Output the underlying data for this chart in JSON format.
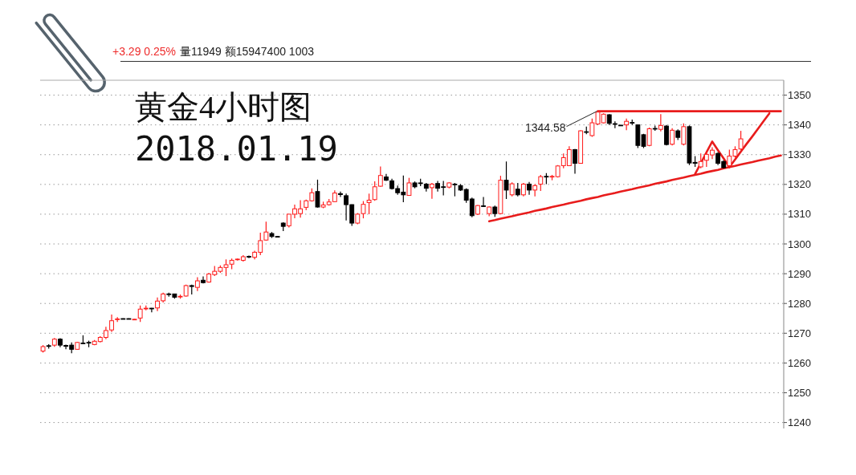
{
  "chart_data": {
    "type": "candlestick",
    "title": "黄金4小时图",
    "subtitle": "2018.01.19",
    "annotations": [
      "1344.58",
      "+3.29 0.25%",
      "量11949 额15947400 1003"
    ],
    "categories": [
      null,
      null,
      null,
      null,
      null,
      null,
      null,
      null,
      null,
      null,
      null,
      null,
      null,
      null,
      null,
      null,
      null,
      null,
      null,
      null,
      null,
      null,
      null,
      null,
      null,
      null,
      null,
      null,
      null,
      null,
      null,
      null,
      null,
      null,
      null,
      null,
      null,
      null,
      null,
      null,
      null,
      null,
      null,
      null,
      null,
      null,
      null,
      null,
      null,
      null,
      null,
      null,
      null,
      null,
      null,
      null,
      null,
      null,
      null,
      null,
      null,
      null,
      null,
      null,
      null,
      null,
      null,
      null,
      null,
      null,
      null,
      null,
      null,
      null,
      null,
      null,
      null,
      null,
      null,
      null,
      null,
      null,
      null,
      null,
      null,
      null,
      null,
      null,
      null,
      null,
      null,
      null,
      null,
      null,
      null,
      null,
      null,
      null,
      null,
      null,
      null,
      null,
      null,
      null,
      null,
      null,
      null,
      null,
      null,
      null,
      null,
      null,
      null,
      null,
      null,
      null,
      null,
      null,
      null,
      null,
      null,
      null,
      null,
      null,
      null,
      null,
      null,
      null,
      null,
      null
    ],
    "ohlc": [
      [
        1264.0,
        1266.0,
        1263.5,
        1265.5
      ],
      [
        1265.8,
        1266.3,
        1264.8,
        1265.6
      ],
      [
        1266.0,
        1268.4,
        1265.4,
        1268.0
      ],
      [
        1268.0,
        1268.3,
        1265.3,
        1266.0
      ],
      [
        1265.9,
        1266.2,
        1264.6,
        1265.6
      ],
      [
        1266.0,
        1266.9,
        1263.3,
        1264.6
      ],
      [
        1264.6,
        1267.1,
        1264.5,
        1266.9
      ],
      [
        1266.7,
        1269.3,
        1266.3,
        1266.5
      ],
      [
        1266.9,
        1267.5,
        1265.3,
        1266.7
      ],
      [
        1266.2,
        1267.7,
        1266.0,
        1267.3
      ],
      [
        1267.2,
        1269.0,
        1266.9,
        1268.6
      ],
      [
        1268.6,
        1272.2,
        1268.0,
        1270.9
      ],
      [
        1271.1,
        1276.3,
        1270.4,
        1274.2
      ],
      [
        1274.6,
        1275.4,
        1273.8,
        1274.8
      ],
      [
        1274.9,
        1275.0,
        1274.7,
        1274.8
      ],
      [
        1274.9,
        1275.0,
        1274.7,
        1274.8
      ],
      [
        1274.6,
        1274.8,
        1274.5,
        1274.7
      ],
      [
        1275.1,
        1279.3,
        1273.8,
        1278.1
      ],
      [
        1278.2,
        1279.3,
        1277.7,
        1278.4
      ],
      [
        1278.4,
        1278.5,
        1277.0,
        1278.2
      ],
      [
        1278.5,
        1282.0,
        1277.4,
        1280.8
      ],
      [
        1280.9,
        1283.6,
        1280.3,
        1283.2
      ],
      [
        1283.2,
        1283.6,
        1282.3,
        1283.1
      ],
      [
        1283.2,
        1283.3,
        1281.6,
        1282.1
      ],
      [
        1282.2,
        1283.0,
        1281.6,
        1282.4
      ],
      [
        1282.5,
        1286.3,
        1282.3,
        1286.0
      ],
      [
        1286.0,
        1286.3,
        1283.0,
        1285.7
      ],
      [
        1285.4,
        1288.8,
        1284.2,
        1287.6
      ],
      [
        1287.8,
        1289.1,
        1286.7,
        1287.0
      ],
      [
        1287.2,
        1290.2,
        1287.0,
        1289.9
      ],
      [
        1289.7,
        1292.6,
        1289.2,
        1290.8
      ],
      [
        1290.8,
        1292.8,
        1290.3,
        1292.1
      ],
      [
        1292.1,
        1294.8,
        1289.2,
        1293.0
      ],
      [
        1293.2,
        1295.1,
        1291.5,
        1294.5
      ],
      [
        1294.7,
        1295.1,
        1294.4,
        1294.9
      ],
      [
        1294.5,
        1296.2,
        1294.1,
        1295.7
      ],
      [
        1295.8,
        1296.1,
        1295.2,
        1295.6
      ],
      [
        1295.5,
        1297.7,
        1294.8,
        1297.2
      ],
      [
        1297.2,
        1303.8,
        1296.2,
        1301.1
      ],
      [
        1301.3,
        1307.5,
        1301.1,
        1304.0
      ],
      [
        1303.5,
        1304.0,
        1302.0,
        1302.5
      ],
      [
        1302.5,
        1302.6,
        1302.2,
        1302.3
      ],
      [
        1307.0,
        1307.3,
        1304.3,
        1305.9
      ],
      [
        1306.1,
        1310.0,
        1305.5,
        1310.0
      ],
      [
        1310.0,
        1313.2,
        1308.6,
        1311.8
      ],
      [
        1310.2,
        1314.7,
        1308.8,
        1311.8
      ],
      [
        1312.3,
        1314.9,
        1311.3,
        1314.5
      ],
      [
        1314.5,
        1318.7,
        1314.2,
        1317.2
      ],
      [
        1317.6,
        1321.6,
        1312.2,
        1312.4
      ],
      [
        1312.4,
        1314.2,
        1312.0,
        1313.1
      ],
      [
        1313.2,
        1315.1,
        1312.9,
        1314.1
      ],
      [
        1314.2,
        1318.0,
        1314.0,
        1317.1
      ],
      [
        1316.9,
        1317.6,
        1315.8,
        1316.6
      ],
      [
        1316.2,
        1316.9,
        1307.9,
        1313.2
      ],
      [
        1313.2,
        1313.3,
        1306.1,
        1307.0
      ],
      [
        1307.0,
        1310.4,
        1306.6,
        1310.0
      ],
      [
        1310.2,
        1314.4,
        1308.6,
        1313.3
      ],
      [
        1313.9,
        1316.9,
        1310.0,
        1314.7
      ],
      [
        1314.9,
        1321.0,
        1314.5,
        1319.2
      ],
      [
        1319.4,
        1326.0,
        1319.2,
        1323.0
      ],
      [
        1322.5,
        1323.5,
        1321.2,
        1321.4
      ],
      [
        1321.2,
        1321.9,
        1318.3,
        1318.6
      ],
      [
        1318.6,
        1319.6,
        1316.5,
        1317.2
      ],
      [
        1317.4,
        1323.0,
        1314.0,
        1316.5
      ],
      [
        1316.3,
        1322.2,
        1316.3,
        1320.5
      ],
      [
        1320.5,
        1321.0,
        1318.7,
        1319.2
      ],
      [
        1320.5,
        1321.9,
        1319.4,
        1320.3
      ],
      [
        1320.1,
        1320.5,
        1317.6,
        1318.7
      ],
      [
        1318.9,
        1320.5,
        1315.2,
        1320.1
      ],
      [
        1320.3,
        1321.2,
        1317.6,
        1318.7
      ],
      [
        1319.2,
        1321.2,
        1316.3,
        1319.0
      ],
      [
        1319.1,
        1320.7,
        1318.7,
        1320.5
      ],
      [
        1320.1,
        1320.5,
        1316.0,
        1319.9
      ],
      [
        1319.6,
        1320.1,
        1317.8,
        1318.1
      ],
      [
        1318.3,
        1318.7,
        1313.8,
        1314.7
      ],
      [
        1315.1,
        1315.6,
        1309.0,
        1309.5
      ],
      [
        1310.0,
        1313.1,
        1309.7,
        1312.9
      ],
      [
        1312.8,
        1315.8,
        1312.4,
        1312.6
      ],
      [
        1310.2,
        1312.6,
        1309.3,
        1312.4
      ],
      [
        1312.4,
        1312.9,
        1309.1,
        1310.2
      ],
      [
        1310.2,
        1322.9,
        1310.0,
        1321.4
      ],
      [
        1321.4,
        1327.7,
        1315.1,
        1318.1
      ],
      [
        1316.5,
        1320.7,
        1316.0,
        1320.2
      ],
      [
        1318.4,
        1320.5,
        1316.0,
        1316.5
      ],
      [
        1316.5,
        1320.5,
        1316.0,
        1320.1
      ],
      [
        1320.1,
        1320.8,
        1316.5,
        1318.1
      ],
      [
        1318.1,
        1320.1,
        1316.0,
        1319.6
      ],
      [
        1320.1,
        1323.2,
        1317.8,
        1322.6
      ],
      [
        1322.7,
        1323.8,
        1320.1,
        1322.5
      ],
      [
        1322.5,
        1323.2,
        1321.4,
        1322.7
      ],
      [
        1322.6,
        1326.5,
        1322.3,
        1326.2
      ],
      [
        1326.3,
        1330.4,
        1325.4,
        1329.0
      ],
      [
        1326.3,
        1332.8,
        1326.3,
        1331.7
      ],
      [
        1331.7,
        1331.9,
        1323.6,
        1327.1
      ],
      [
        1327.1,
        1338.2,
        1327.1,
        1338.0
      ],
      [
        1337.7,
        1339.4,
        1336.9,
        1337.5
      ],
      [
        1336.4,
        1342.1,
        1336.0,
        1340.7
      ],
      [
        1340.3,
        1344.58,
        1340.0,
        1344.3
      ],
      [
        1340.7,
        1343.9,
        1340.5,
        1343.6
      ],
      [
        1343.4,
        1343.6,
        1340.0,
        1340.5
      ],
      [
        1340.4,
        1341.2,
        1338.9,
        1340.2
      ],
      [
        1339.9,
        1340.0,
        1339.6,
        1339.7
      ],
      [
        1340.0,
        1342.1,
        1338.2,
        1341.2
      ],
      [
        1340.8,
        1341.8,
        1340.0,
        1340.6
      ],
      [
        1340.0,
        1340.0,
        1332.2,
        1333.1
      ],
      [
        1336.7,
        1337.0,
        1332.2,
        1332.8
      ],
      [
        1333.1,
        1339.1,
        1332.8,
        1338.7
      ],
      [
        1338.8,
        1339.8,
        1338.0,
        1338.6
      ],
      [
        1338.5,
        1343.6,
        1337.8,
        1339.8
      ],
      [
        1339.6,
        1340.0,
        1333.1,
        1333.4
      ],
      [
        1333.5,
        1338.9,
        1333.1,
        1338.2
      ],
      [
        1338.0,
        1338.5,
        1334.9,
        1335.8
      ],
      [
        1333.5,
        1340.5,
        1333.1,
        1339.4
      ],
      [
        1339.4,
        1339.8,
        1326.5,
        1327.2
      ],
      [
        1327.4,
        1329.5,
        1325.9,
        1327.1
      ],
      [
        1325.9,
        1330.4,
        1325.4,
        1327.7
      ],
      [
        1328.1,
        1331.3,
        1325.9,
        1330.1
      ],
      [
        1329.9,
        1332.5,
        1328.5,
        1331.5
      ],
      [
        1330.4,
        1330.8,
        1326.5,
        1327.1
      ],
      [
        1327.7,
        1328.1,
        1325.4,
        1325.6
      ],
      [
        1326.3,
        1331.7,
        1325.4,
        1329.5
      ],
      [
        1329.5,
        1332.8,
        1329.0,
        1331.7
      ],
      [
        1331.9,
        1338.0,
        1331.6,
        1335.3
      ],
      null,
      null,
      null,
      null,
      null,
      null,
      null
    ],
    "colors": [
      "#ff1a1a",
      "#000000",
      "#ff1a1a",
      "#000000",
      "#000000",
      "#000000",
      "#ff1a1a",
      "#000000",
      "#000000",
      "#ff1a1a",
      "#ff1a1a",
      "#ff1a1a",
      "#ff1a1a",
      "#ff1a1a",
      "#000000",
      "#000000",
      "#ff1a1a",
      "#ff1a1a",
      "#ff1a1a",
      "#000000",
      "#ff1a1a",
      "#ff1a1a",
      "#000000",
      "#000000",
      "#ff1a1a",
      "#ff1a1a",
      "#000000",
      "#ff1a1a",
      "#000000",
      "#ff1a1a",
      "#ff1a1a",
      "#ff1a1a",
      "#ff1a1a",
      "#ff1a1a",
      "#ff1a1a",
      "#ff1a1a",
      "#000000",
      "#ff1a1a",
      "#ff1a1a",
      "#ff1a1a",
      "#000000",
      "#000000",
      "#000000",
      "#ff1a1a",
      "#ff1a1a",
      "#ff1a1a",
      "#ff1a1a",
      "#ff1a1a",
      "#000000",
      "#ff1a1a",
      "#ff1a1a",
      "#ff1a1a",
      "#000000",
      "#000000",
      "#000000",
      "#ff1a1a",
      "#ff1a1a",
      "#ff1a1a",
      "#ff1a1a",
      "#ff1a1a",
      "#000000",
      "#000000",
      "#000000",
      "#000000",
      "#ff1a1a",
      "#000000",
      "#000000",
      "#000000",
      "#ff1a1a",
      "#000000",
      "#000000",
      "#ff1a1a",
      "#000000",
      "#000000",
      "#000000",
      "#000000",
      "#ff1a1a",
      "#000000",
      "#ff1a1a",
      "#000000",
      "#ff1a1a",
      "#000000",
      "#ff1a1a",
      "#000000",
      "#ff1a1a",
      "#000000",
      "#ff1a1a",
      "#ff1a1a",
      "#000000",
      "#ff1a1a",
      "#ff1a1a",
      "#ff1a1a",
      "#ff1a1a",
      "#000000",
      "#ff1a1a",
      "#000000",
      "#ff1a1a",
      "#ff1a1a",
      "#ff1a1a",
      "#000000",
      "#000000",
      "#000000",
      "#ff1a1a",
      "#000000",
      "#000000",
      "#000000",
      "#ff1a1a",
      "#000000",
      "#ff1a1a",
      "#000000",
      "#ff1a1a",
      "#000000",
      "#ff1a1a",
      "#000000",
      "#000000",
      "#ff1a1a",
      "#ff1a1a",
      "#ff1a1a",
      "#000000",
      "#000000",
      "#ff1a1a",
      "#ff1a1a",
      "#ff1a1a",
      null,
      null,
      null,
      null,
      null,
      null,
      null
    ],
    "series": [
      {
        "type": "line",
        "color": "#e81c1c",
        "values": [
          null,
          null,
          null,
          null,
          null,
          null,
          null,
          null,
          null,
          null,
          null,
          null,
          null,
          null,
          null,
          null,
          null,
          null,
          null,
          null,
          null,
          null,
          null,
          null,
          null,
          null,
          null,
          null,
          null,
          null,
          null,
          null,
          null,
          null,
          null,
          null,
          null,
          null,
          null,
          null,
          null,
          null,
          null,
          null,
          null,
          null,
          null,
          null,
          null,
          null,
          null,
          null,
          null,
          null,
          null,
          null,
          null,
          null,
          null,
          null,
          null,
          null,
          null,
          null,
          null,
          null,
          null,
          null,
          null,
          null,
          null,
          null,
          null,
          null,
          null,
          null,
          null,
          null,
          null,
          null,
          null,
          null,
          null,
          null,
          null,
          null,
          null,
          null,
          null,
          null,
          null,
          null,
          null,
          null,
          null,
          null,
          null,
          1344.6,
          1344.6,
          1344.6,
          1344.6,
          1344.6,
          1344.6,
          1344.6,
          1344.6,
          1344.6,
          1344.6,
          1344.6,
          1344.6,
          1344.6,
          1344.6,
          1344.6,
          1344.6,
          1344.6,
          1344.6,
          1344.6,
          1344.6,
          1344.6,
          1344.6,
          1344.6,
          1344.6,
          1344.6,
          1344.6,
          1344.6,
          1344.6,
          1344.6,
          1344.6,
          1344.6,
          1344.6,
          1344.6
        ]
      },
      {
        "type": "line",
        "color": "#e81c1c",
        "values": [
          null,
          null,
          null,
          null,
          null,
          null,
          null,
          null,
          null,
          null,
          null,
          null,
          null,
          null,
          null,
          null,
          null,
          null,
          null,
          null,
          null,
          null,
          null,
          null,
          null,
          null,
          null,
          null,
          null,
          null,
          null,
          null,
          null,
          null,
          null,
          null,
          null,
          null,
          null,
          null,
          null,
          null,
          null,
          null,
          null,
          null,
          null,
          null,
          null,
          null,
          null,
          null,
          null,
          null,
          null,
          null,
          null,
          null,
          null,
          null,
          null,
          null,
          null,
          null,
          null,
          null,
          null,
          null,
          null,
          null,
          null,
          null,
          null,
          null,
          null,
          null,
          null,
          null,
          1307.6,
          1308.0,
          1308.5,
          1308.9,
          1309.3,
          1309.8,
          1310.2,
          1310.6,
          1311.1,
          1311.5,
          1311.9,
          1312.4,
          1312.8,
          1313.2,
          1313.7,
          1314.1,
          1314.5,
          1315.0,
          1315.4,
          1315.8,
          1316.3,
          1316.7,
          1317.1,
          1317.6,
          1318.0,
          1318.4,
          1318.9,
          1319.3,
          1319.7,
          1320.2,
          1320.6,
          1321.0,
          1321.5,
          1321.9,
          1322.3,
          1322.8,
          1323.2,
          1323.6,
          1324.1,
          1324.5,
          1324.9,
          1325.4,
          1325.8,
          1326.2,
          1326.7,
          1327.1,
          1327.5,
          1328.0,
          1328.4,
          1328.8,
          1329.3,
          1329.7
        ]
      },
      {
        "type": "line",
        "color": "#e81c1c",
        "values": [
          null,
          null,
          null,
          null,
          null,
          null,
          null,
          null,
          null,
          null,
          null,
          null,
          null,
          null,
          null,
          null,
          null,
          null,
          null,
          null,
          null,
          null,
          null,
          null,
          null,
          null,
          null,
          null,
          null,
          null,
          null,
          null,
          null,
          null,
          null,
          null,
          null,
          null,
          null,
          null,
          null,
          null,
          null,
          null,
          null,
          null,
          null,
          null,
          null,
          null,
          null,
          null,
          null,
          null,
          null,
          null,
          null,
          null,
          null,
          null,
          null,
          null,
          null,
          null,
          null,
          null,
          null,
          null,
          null,
          null,
          null,
          null,
          null,
          null,
          null,
          null,
          null,
          null,
          null,
          null,
          null,
          null,
          null,
          null,
          null,
          null,
          null,
          null,
          null,
          null,
          null,
          null,
          null,
          null,
          null,
          null,
          null,
          null,
          null,
          null,
          null,
          null,
          null,
          null,
          null,
          null,
          null,
          null,
          null,
          null,
          null,
          null,
          null,
          null,
          1323.5,
          1327.1,
          1330.8,
          1334.4,
          1331.5,
          1328.7,
          1325.8,
          1328.4,
          1331.0,
          1333.6,
          1336.1,
          1338.7,
          1341.3,
          1343.9,
          null,
          null
        ]
      }
    ],
    "ylim": [
      1238,
      1355
    ],
    "yticks": [
      1240,
      1250,
      1260,
      1270,
      1280,
      1290,
      1300,
      1310,
      1320,
      1330,
      1340,
      1350
    ],
    "grid": "y"
  }
}
